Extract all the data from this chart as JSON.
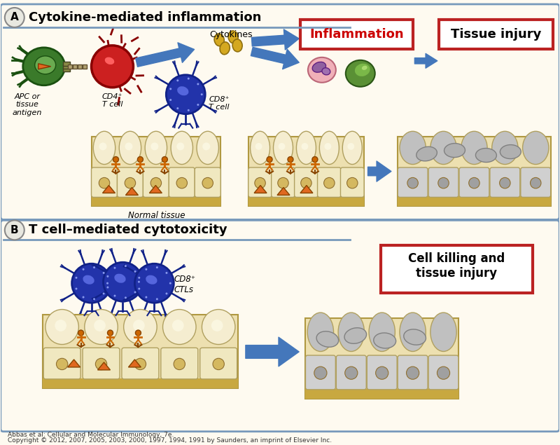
{
  "title_a": "Cytokine-mediated inflammation",
  "title_b": "T cell–mediated cytotoxicity",
  "label_apc": "APC or\ntissue\nantigen",
  "label_cd4": "CD4⁺\nT cell",
  "label_cd8_a": "CD8⁺\nT cell",
  "label_cd8_b": "CD8⁺\nCTLs",
  "label_cytokines": "Cytokines",
  "label_inflammation": "Inflammation",
  "label_tissue_injury": "Tissue injury",
  "label_cell_killing": "Cell killing and\ntissue injury",
  "label_normal_tissue": "Normal tissue",
  "citation_line1": "Abbas et al: Cellular and Molecular Immunology, 7e.",
  "citation_line2": "Copyright © 2012, 2007, 2005, 2003, 2000, 1997, 1994, 1991 by Saunders, an imprint of Elsevier Inc.",
  "bg_color": "#FEFAF0",
  "panel_border": "#7799BB",
  "apc_green": "#3A7A2A",
  "apc_green_light": "#6AAA50",
  "cd4_red": "#CC2020",
  "cd8_blue": "#2233AA",
  "cd8_blue_light": "#4455CC",
  "arrow_blue": "#4477BB",
  "cytokine_yellow": "#D4A820",
  "inflammation_red": "#CC0000",
  "box_red": "#BB2222",
  "tissue_bg": "#EDE0B0",
  "tissue_top": "#F5EDD0",
  "tissue_bar": "#C8A840",
  "tissue_cell_light": "#F0E8C0",
  "tissue_cell_dark": "#E0D090",
  "tissue_gray1": "#C0C0C0",
  "tissue_gray2": "#989898",
  "receptor_orange": "#CC6600",
  "receptor_dark": "#884400",
  "antigen_orange": "#E06820",
  "pink_cell": "#E8A0B0",
  "pink_inner": "#C060A0",
  "green_cell2": "#4A8A30",
  "blue_line": "#336699"
}
